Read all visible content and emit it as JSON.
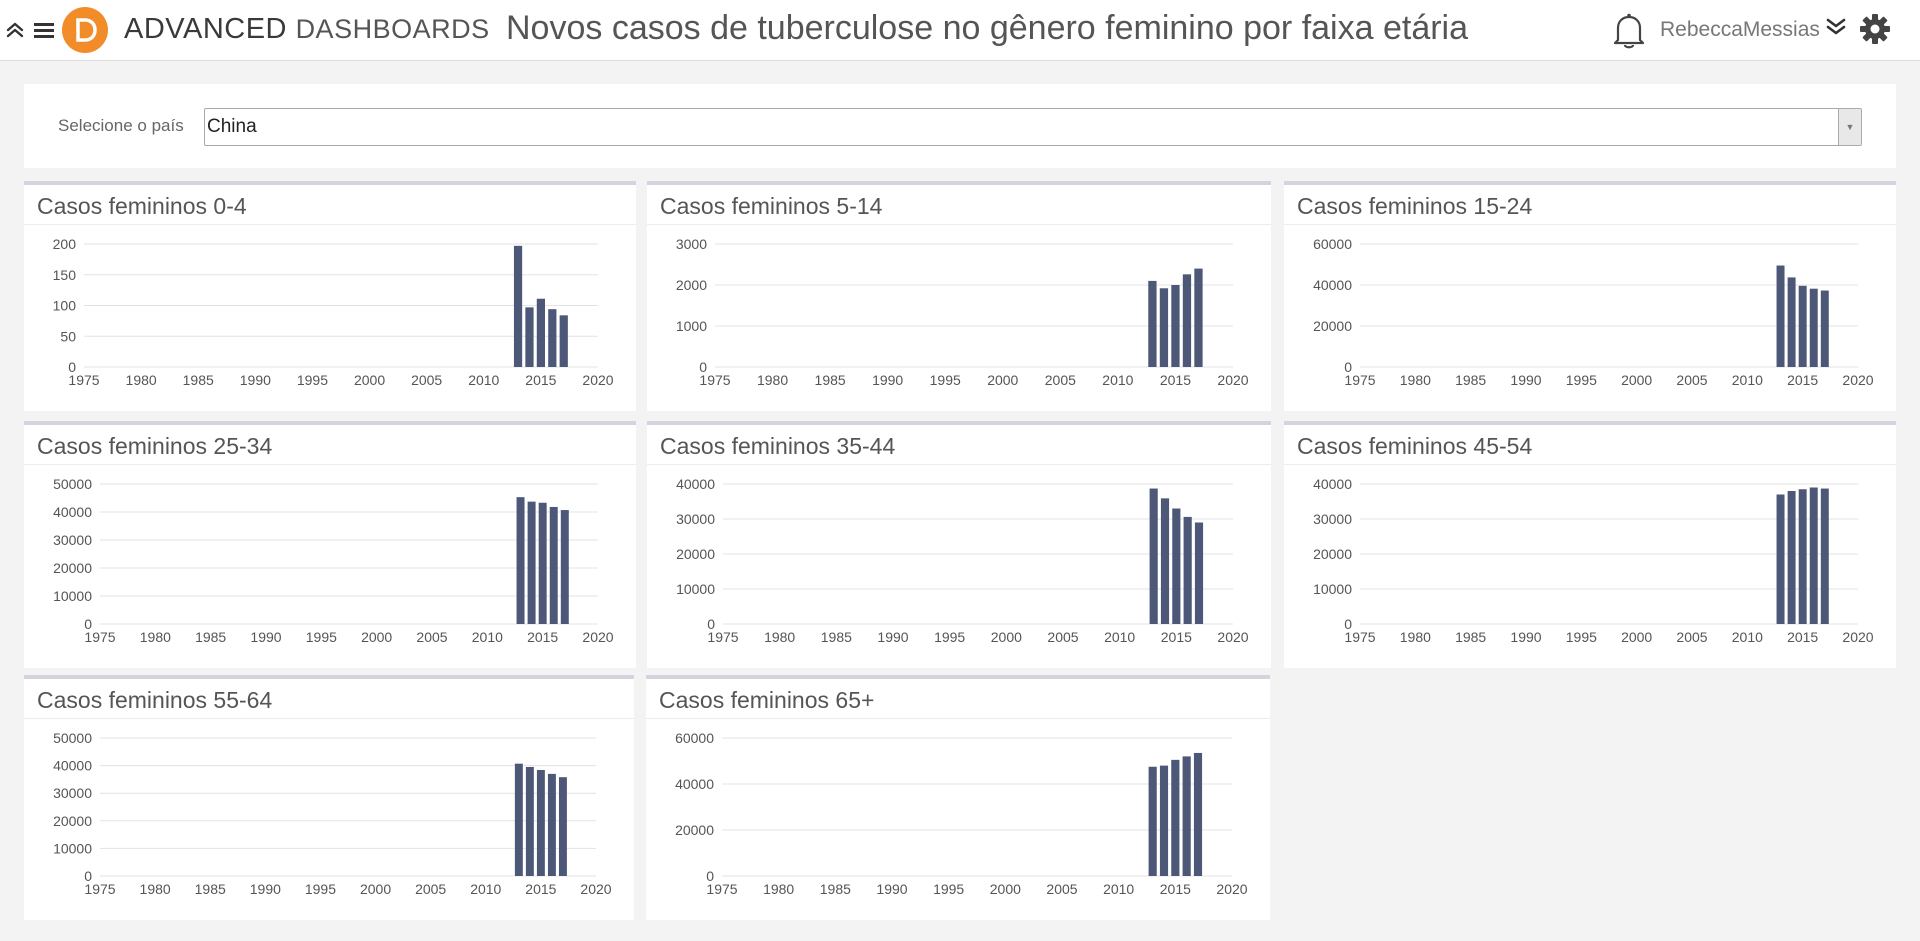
{
  "app": {
    "brand_bold": "ADVANCED",
    "brand_light": "DASHBOARDS",
    "title": "Novos casos de tuberculose no gênero feminino por faixa etária",
    "username": "RebeccaMessias",
    "icons": {
      "collapse": "chevrons-up-icon",
      "menu": "hamburger-menu-icon",
      "logo": "logo-icon",
      "bell": "bell-icon",
      "user_menu": "chevrons-down-icon",
      "settings": "gear-icon"
    },
    "colors": {
      "accent": "#f28c28",
      "bar": "#4d5878"
    }
  },
  "filter": {
    "label": "Selecione o país",
    "value": "China"
  },
  "chart_data": [
    {
      "type": "bar",
      "title": "Casos femininos 0-4",
      "x": [
        2013,
        2014,
        2015,
        2016,
        2017
      ],
      "values": [
        197,
        97,
        111,
        94,
        84
      ],
      "xticks": [
        "1975",
        "1980",
        "1985",
        "1990",
        "1995",
        "2000",
        "2005",
        "2010",
        "2015",
        "2020"
      ],
      "yticks": [
        "0",
        "50",
        "100",
        "150",
        "200"
      ],
      "xlim": [
        1975,
        2020
      ],
      "ylim": [
        0,
        200
      ],
      "grid": true
    },
    {
      "type": "bar",
      "title": "Casos femininos 5-14",
      "x": [
        2013,
        2014,
        2015,
        2016,
        2017
      ],
      "values": [
        2100,
        1920,
        2000,
        2260,
        2400
      ],
      "xticks": [
        "1975",
        "1980",
        "1985",
        "1990",
        "1995",
        "2000",
        "2005",
        "2010",
        "2015",
        "2020"
      ],
      "yticks": [
        "0",
        "1000",
        "2000",
        "3000"
      ],
      "xlim": [
        1975,
        2020
      ],
      "ylim": [
        0,
        3000
      ],
      "grid": true
    },
    {
      "type": "bar",
      "title": "Casos femininos 15-24",
      "x": [
        2013,
        2014,
        2015,
        2016,
        2017
      ],
      "values": [
        49500,
        43700,
        39600,
        38200,
        37300
      ],
      "xticks": [
        "1975",
        "1980",
        "1985",
        "1990",
        "1995",
        "2000",
        "2005",
        "2010",
        "2015",
        "2020"
      ],
      "yticks": [
        "0",
        "20000",
        "40000",
        "60000"
      ],
      "xlim": [
        1975,
        2020
      ],
      "ylim": [
        0,
        60000
      ],
      "grid": true
    },
    {
      "type": "bar",
      "title": "Casos femininos 25-34",
      "x": [
        2013,
        2014,
        2015,
        2016,
        2017
      ],
      "values": [
        45300,
        43700,
        43300,
        41800,
        40700
      ],
      "xticks": [
        "1975",
        "1980",
        "1985",
        "1990",
        "1995",
        "2000",
        "2005",
        "2010",
        "2015",
        "2020"
      ],
      "yticks": [
        "0",
        "10000",
        "20000",
        "30000",
        "40000",
        "50000"
      ],
      "xlim": [
        1975,
        2020
      ],
      "ylim": [
        0,
        50000
      ],
      "grid": true
    },
    {
      "type": "bar",
      "title": "Casos femininos 35-44",
      "x": [
        2013,
        2014,
        2015,
        2016,
        2017
      ],
      "values": [
        38700,
        35900,
        33000,
        30600,
        29000
      ],
      "xticks": [
        "1975",
        "1980",
        "1985",
        "1990",
        "1995",
        "2000",
        "2005",
        "2010",
        "2015",
        "2020"
      ],
      "yticks": [
        "0",
        "10000",
        "20000",
        "30000",
        "40000"
      ],
      "xlim": [
        1975,
        2020
      ],
      "ylim": [
        0,
        40000
      ],
      "grid": true
    },
    {
      "type": "bar",
      "title": "Casos femininos 45-54",
      "x": [
        2013,
        2014,
        2015,
        2016,
        2017
      ],
      "values": [
        37000,
        38000,
        38500,
        39000,
        38700
      ],
      "xticks": [
        "1975",
        "1980",
        "1985",
        "1990",
        "1995",
        "2000",
        "2005",
        "2010",
        "2015",
        "2020"
      ],
      "yticks": [
        "0",
        "10000",
        "20000",
        "30000",
        "40000"
      ],
      "xlim": [
        1975,
        2020
      ],
      "ylim": [
        0,
        40000
      ],
      "grid": true
    },
    {
      "type": "bar",
      "title": "Casos femininos 55-64",
      "x": [
        2013,
        2014,
        2015,
        2016,
        2017
      ],
      "values": [
        40700,
        39500,
        38400,
        37000,
        35800
      ],
      "xticks": [
        "1975",
        "1980",
        "1985",
        "1990",
        "1995",
        "2000",
        "2005",
        "2010",
        "2015",
        "2020"
      ],
      "yticks": [
        "0",
        "10000",
        "20000",
        "30000",
        "40000",
        "50000"
      ],
      "xlim": [
        1975,
        2020
      ],
      "ylim": [
        0,
        50000
      ],
      "grid": true
    },
    {
      "type": "bar",
      "title": "Casos femininos 65+",
      "x": [
        2013,
        2014,
        2015,
        2016,
        2017
      ],
      "values": [
        47500,
        48000,
        50500,
        52000,
        53500
      ],
      "xticks": [
        "1975",
        "1980",
        "1985",
        "1990",
        "1995",
        "2000",
        "2005",
        "2010",
        "2015",
        "2020"
      ],
      "yticks": [
        "0",
        "20000",
        "40000",
        "60000"
      ],
      "xlim": [
        1975,
        2020
      ],
      "ylim": [
        0,
        60000
      ],
      "grid": true
    }
  ]
}
